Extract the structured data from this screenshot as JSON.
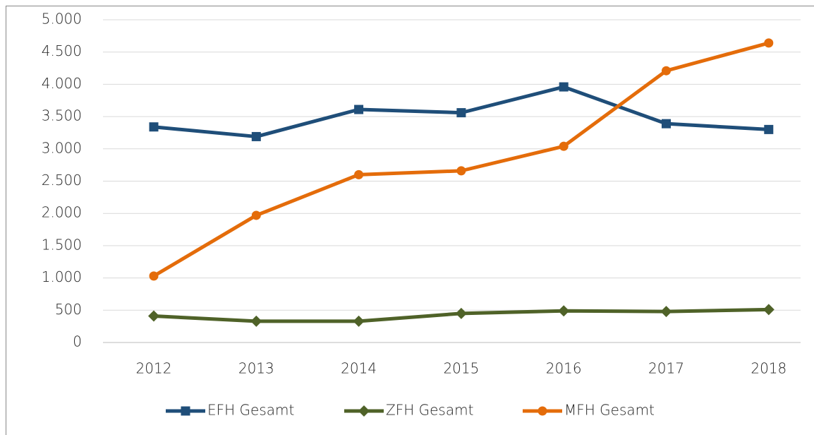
{
  "chart_data": {
    "type": "line",
    "categories": [
      "2012",
      "2013",
      "2014",
      "2015",
      "2016",
      "2017",
      "2018"
    ],
    "series": [
      {
        "name": "EFH Gesamt",
        "color": "#1f4e79",
        "marker": "square",
        "values": [
          3340,
          3190,
          3610,
          3560,
          3960,
          3390,
          3300
        ]
      },
      {
        "name": "ZFH Gesamt",
        "color": "#4f6228",
        "marker": "diamond",
        "values": [
          410,
          330,
          330,
          450,
          490,
          480,
          510
        ]
      },
      {
        "name": "MFH Gesamt",
        "color": "#e46c0a",
        "marker": "circle",
        "values": [
          1030,
          1970,
          2600,
          2660,
          3040,
          4210,
          4640
        ]
      }
    ],
    "ylim": [
      0,
      5000
    ],
    "yticks": [
      0,
      500,
      {
        "value": 1000,
        "label": "1.000"
      },
      {
        "value": 1500,
        "label": "1.500"
      },
      {
        "value": 2000,
        "label": "2.000"
      },
      {
        "value": 2500,
        "label": "2.500"
      },
      {
        "value": 3000,
        "label": "3.000"
      },
      {
        "value": 3500,
        "label": "3.500"
      },
      {
        "value": 4000,
        "label": "4.000"
      },
      {
        "value": 4500,
        "label": "4.500"
      },
      {
        "value": 5000,
        "label": "5.000"
      }
    ],
    "grid": true,
    "legend": "bottom"
  }
}
